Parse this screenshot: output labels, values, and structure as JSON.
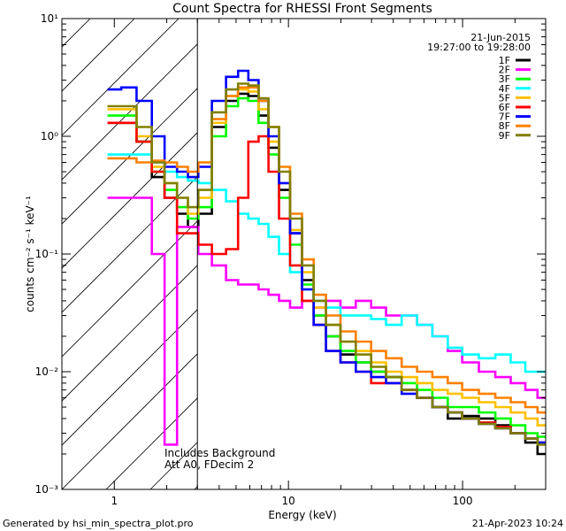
{
  "chart_data": {
    "type": "line",
    "title": "Count Spectra for RHESSI Front Segments",
    "xlabel": "Energy (keV)",
    "ylabel": "counts cm⁻² s⁻¹ keV⁻¹",
    "xscale": "log",
    "yscale": "log",
    "xlim": [
      0.5,
      300
    ],
    "ylim": [
      0.001,
      10
    ],
    "x_ticks": [
      {
        "value": 1,
        "label": "1"
      },
      {
        "value": 10,
        "label": "10"
      },
      {
        "value": 100,
        "label": "100"
      }
    ],
    "y_ticks": [
      {
        "value": 0.001,
        "label": "10⁻³"
      },
      {
        "value": 0.01,
        "label": "10⁻²"
      },
      {
        "value": 0.1,
        "label": "10⁻¹"
      },
      {
        "value": 1,
        "label": "10⁰"
      },
      {
        "value": 10,
        "label": "10¹"
      }
    ],
    "date": "21-Jun-2015",
    "time_range": "19:27:00 to 19:28:00",
    "annotations": [
      "Includes Background",
      "Att A0, FDecim 2"
    ],
    "hatched_region": {
      "x_from": 0.5,
      "x_to": 3,
      "description": "excluded low-energy region"
    },
    "footer_left": "Generated by hsi_min_spectra_plot.pro",
    "footer_right": "21-Apr-2023 10:24",
    "legend_position": "top-right",
    "x": [
      1.0,
      1.2,
      1.5,
      1.8,
      2.1,
      2.5,
      2.8,
      3.3,
      4.0,
      4.8,
      5.5,
      6.3,
      7.2,
      8.2,
      9.5,
      11,
      13,
      15,
      18,
      22,
      27,
      33,
      40,
      50,
      60,
      75,
      90,
      110,
      140,
      170,
      210,
      250,
      290
    ],
    "series": [
      {
        "name": "1F",
        "color": "#000000",
        "values": [
          1.3,
          1.3,
          0.9,
          0.45,
          0.3,
          0.22,
          0.17,
          0.22,
          1.2,
          2.0,
          2.3,
          2.2,
          1.5,
          0.8,
          0.35,
          0.15,
          0.06,
          0.03,
          0.02,
          0.014,
          0.012,
          0.01,
          0.009,
          0.007,
          0.006,
          0.005,
          0.004,
          0.0042,
          0.004,
          0.0035,
          0.003,
          0.0025,
          0.002
        ]
      },
      {
        "name": "2F",
        "color": "#ff00ff",
        "values": [
          0.3,
          0.3,
          0.3,
          0.1,
          0.0024,
          0.17,
          0.17,
          0.1,
          0.08,
          0.06,
          0.055,
          0.055,
          0.05,
          0.045,
          0.04,
          0.035,
          0.04,
          0.035,
          0.04,
          0.035,
          0.04,
          0.035,
          0.03,
          0.03,
          0.025,
          0.02,
          0.015,
          0.012,
          0.01,
          0.009,
          0.008,
          0.007,
          0.006
        ]
      },
      {
        "name": "3F",
        "color": "#00ff00",
        "values": [
          1.5,
          1.5,
          0.9,
          0.5,
          0.35,
          0.25,
          0.2,
          0.25,
          1.0,
          1.8,
          2.1,
          2.0,
          1.3,
          0.7,
          0.3,
          0.12,
          0.055,
          0.03,
          0.02,
          0.015,
          0.012,
          0.01,
          0.009,
          0.008,
          0.007,
          0.006,
          0.005,
          0.005,
          0.0045,
          0.004,
          0.0035,
          0.003,
          0.0028
        ]
      },
      {
        "name": "4F",
        "color": "#00ffff",
        "values": [
          0.7,
          0.7,
          0.7,
          0.6,
          0.5,
          0.45,
          0.42,
          0.4,
          0.35,
          0.28,
          0.22,
          0.2,
          0.18,
          0.14,
          0.1,
          0.07,
          0.05,
          0.04,
          0.035,
          0.03,
          0.03,
          0.028,
          0.025,
          0.03,
          0.025,
          0.02,
          0.016,
          0.014,
          0.013,
          0.014,
          0.012,
          0.01,
          0.01
        ]
      },
      {
        "name": "5F",
        "color": "#ffc000",
        "values": [
          1.7,
          1.7,
          1.0,
          0.55,
          0.4,
          0.3,
          0.22,
          0.3,
          1.3,
          2.2,
          2.5,
          2.4,
          1.7,
          0.9,
          0.4,
          0.16,
          0.07,
          0.035,
          0.025,
          0.018,
          0.015,
          0.012,
          0.01,
          0.009,
          0.008,
          0.007,
          0.0065,
          0.006,
          0.0055,
          0.005,
          0.0045,
          0.004,
          0.0035
        ]
      },
      {
        "name": "6F",
        "color": "#ff0000",
        "values": [
          1.3,
          1.3,
          0.9,
          0.5,
          0.3,
          0.15,
          0.15,
          0.12,
          0.1,
          0.11,
          0.3,
          0.9,
          1.0,
          0.5,
          0.2,
          0.08,
          0.04,
          0.025,
          0.015,
          0.012,
          0.01,
          0.008,
          0.008,
          0.007,
          0.006,
          0.005,
          0.0045,
          0.004,
          0.0037,
          0.0034,
          0.003,
          0.0027,
          0.0025
        ]
      },
      {
        "name": "7F",
        "color": "#0000ff",
        "values": [
          2.5,
          2.6,
          2.0,
          1.0,
          0.55,
          0.5,
          0.45,
          0.55,
          2.0,
          3.2,
          3.6,
          3.0,
          2.0,
          1.0,
          0.4,
          0.15,
          0.05,
          0.025,
          0.015,
          0.012,
          0.01,
          0.009,
          0.008,
          0.0065,
          0.006,
          0.005,
          0.0045,
          0.004,
          0.0036,
          0.0033,
          0.003,
          0.0027,
          0.0025
        ]
      },
      {
        "name": "8F",
        "color": "#ff8000",
        "values": [
          0.65,
          0.65,
          0.6,
          0.62,
          0.6,
          0.55,
          0.5,
          0.6,
          1.4,
          2.2,
          2.6,
          2.6,
          2.0,
          1.2,
          0.55,
          0.22,
          0.09,
          0.045,
          0.03,
          0.022,
          0.018,
          0.015,
          0.013,
          0.011,
          0.01,
          0.009,
          0.008,
          0.007,
          0.0065,
          0.006,
          0.0055,
          0.005,
          0.0045
        ]
      },
      {
        "name": "9F",
        "color": "#808000",
        "values": [
          1.8,
          1.8,
          1.2,
          0.6,
          0.4,
          0.3,
          0.25,
          0.35,
          1.6,
          2.5,
          2.8,
          2.7,
          2.1,
          1.2,
          0.5,
          0.2,
          0.08,
          0.04,
          0.025,
          0.018,
          0.014,
          0.011,
          0.009,
          0.007,
          0.006,
          0.005,
          0.0045,
          0.004,
          0.0036,
          0.0033,
          0.003,
          0.0027,
          0.0024
        ]
      }
    ]
  }
}
